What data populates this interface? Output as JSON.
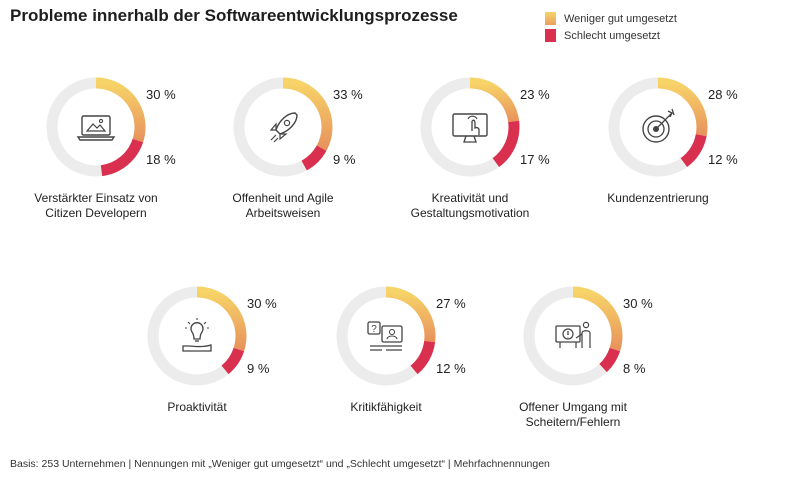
{
  "title": "Probleme innerhalb der Softwareentwicklungsprozesse",
  "legend": [
    {
      "label": "Weniger gut umgesetzt",
      "color": "#f2c25c"
    },
    {
      "label": "Schlecht umgesetzt",
      "color": "#d9304f"
    }
  ],
  "footnote": "Basis: 253 Unternehmen | Nennungen mit „Weniger gut umgesetzt“ und „Schlecht umgesetzt“ | Mehrfachnennungen",
  "chart_data": {
    "type": "donut",
    "series_names": [
      "Weniger gut umgesetzt",
      "Schlecht umgesetzt"
    ],
    "colors": {
      "weniger_start": "#f7d468",
      "weniger_end": "#e8925c",
      "schlecht": "#d9304f",
      "track": "#ececec"
    },
    "items": [
      {
        "label_lines": [
          "Verstärkter Einsatz von",
          "Citizen Developern"
        ],
        "weniger": 30,
        "schlecht": 18,
        "weniger_label": "30 %",
        "schlecht_label": "18 %",
        "icon": "laptop-image-icon"
      },
      {
        "label_lines": [
          "Offenheit und Agile",
          "Arbeitsweisen"
        ],
        "weniger": 33,
        "schlecht": 9,
        "weniger_label": "33 %",
        "schlecht_label": "9 %",
        "icon": "rocket-icon"
      },
      {
        "label_lines": [
          "Kreativität und",
          "Gestaltungsmotivation"
        ],
        "weniger": 23,
        "schlecht": 17,
        "weniger_label": "23 %",
        "schlecht_label": "17 %",
        "icon": "monitor-touch-icon"
      },
      {
        "label_lines": [
          "Kundenzentrierung"
        ],
        "weniger": 28,
        "schlecht": 12,
        "weniger_label": "28 %",
        "schlecht_label": "12 %",
        "icon": "target-icon"
      },
      {
        "label_lines": [
          "Proaktivität"
        ],
        "weniger": 30,
        "schlecht": 9,
        "weniger_label": "30 %",
        "schlecht_label": "9 %",
        "icon": "lightbulb-hand-icon"
      },
      {
        "label_lines": [
          "Kritikfähigkeit"
        ],
        "weniger": 27,
        "schlecht": 12,
        "weniger_label": "27 %",
        "schlecht_label": "12 %",
        "icon": "feedback-chat-icon"
      },
      {
        "label_lines": [
          "Offener Umgang mit",
          "Scheitern/Fehlern"
        ],
        "weniger": 30,
        "schlecht": 8,
        "weniger_label": "30 %",
        "schlecht_label": "8 %",
        "icon": "presentation-error-icon"
      }
    ]
  }
}
